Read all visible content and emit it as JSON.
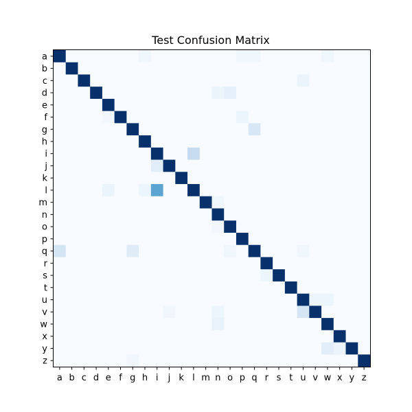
{
  "chart_data": {
    "type": "heatmap",
    "title": "Test Confusion Matrix",
    "xlabel": "",
    "ylabel": "",
    "x_categories": [
      "a",
      "b",
      "c",
      "d",
      "e",
      "f",
      "g",
      "h",
      "i",
      "j",
      "k",
      "l",
      "m",
      "n",
      "o",
      "p",
      "q",
      "r",
      "s",
      "t",
      "u",
      "v",
      "w",
      "x",
      "y",
      "z"
    ],
    "y_categories": [
      "a",
      "b",
      "c",
      "d",
      "e",
      "f",
      "g",
      "h",
      "i",
      "j",
      "k",
      "l",
      "m",
      "n",
      "o",
      "p",
      "q",
      "r",
      "s",
      "t",
      "u",
      "v",
      "w",
      "x",
      "y",
      "z"
    ],
    "colormap": "Blues",
    "value_range": [
      0,
      1
    ],
    "grid": false,
    "legend": "none",
    "diagonal_value": 1.0,
    "off_diagonal_cells": [
      {
        "row": "a",
        "col": "h",
        "value": 0.04
      },
      {
        "row": "a",
        "col": "p",
        "value": 0.04
      },
      {
        "row": "a",
        "col": "q",
        "value": 0.04
      },
      {
        "row": "a",
        "col": "w",
        "value": 0.04
      },
      {
        "row": "c",
        "col": "u",
        "value": 0.06
      },
      {
        "row": "d",
        "col": "n",
        "value": 0.06
      },
      {
        "row": "d",
        "col": "o",
        "value": 0.09
      },
      {
        "row": "f",
        "col": "e",
        "value": 0.03
      },
      {
        "row": "f",
        "col": "p",
        "value": 0.05
      },
      {
        "row": "g",
        "col": "q",
        "value": 0.16
      },
      {
        "row": "i",
        "col": "l",
        "value": 0.25
      },
      {
        "row": "j",
        "col": "i",
        "value": 0.11
      },
      {
        "row": "l",
        "col": "e",
        "value": 0.06
      },
      {
        "row": "l",
        "col": "h",
        "value": 0.05
      },
      {
        "row": "l",
        "col": "i",
        "value": 0.55
      },
      {
        "row": "m",
        "col": "n",
        "value": 0.04
      },
      {
        "row": "o",
        "col": "n",
        "value": 0.03
      },
      {
        "row": "q",
        "col": "a",
        "value": 0.18
      },
      {
        "row": "q",
        "col": "g",
        "value": 0.12
      },
      {
        "row": "q",
        "col": "o",
        "value": 0.04
      },
      {
        "row": "q",
        "col": "u",
        "value": 0.04
      },
      {
        "row": "s",
        "col": "r",
        "value": 0.05
      },
      {
        "row": "u",
        "col": "v",
        "value": 0.05
      },
      {
        "row": "u",
        "col": "w",
        "value": 0.05
      },
      {
        "row": "v",
        "col": "j",
        "value": 0.04
      },
      {
        "row": "v",
        "col": "n",
        "value": 0.05
      },
      {
        "row": "v",
        "col": "u",
        "value": 0.17
      },
      {
        "row": "w",
        "col": "n",
        "value": 0.07
      },
      {
        "row": "y",
        "col": "w",
        "value": 0.11
      },
      {
        "row": "y",
        "col": "x",
        "value": 0.06
      },
      {
        "row": "z",
        "col": "g",
        "value": 0.04
      }
    ]
  }
}
